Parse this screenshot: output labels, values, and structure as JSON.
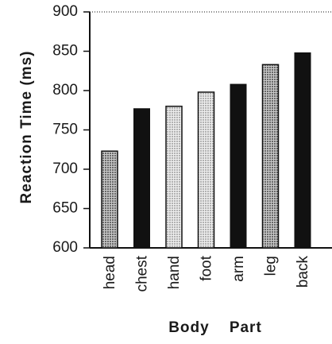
{
  "chart_data": {
    "type": "bar",
    "xlabel": "Body    Part",
    "ylabel": "Reaction   Time  (ms)",
    "categories": [
      "head",
      "chest",
      "hand",
      "foot",
      "arm",
      "leg",
      "back"
    ],
    "values": [
      723,
      777,
      780,
      798,
      808,
      833,
      848
    ],
    "fill_styles": [
      "dots-dense",
      "solid",
      "dots-light",
      "dots-light",
      "solid",
      "dots-dense",
      "solid"
    ],
    "ylim": [
      600,
      900
    ],
    "yticks": [
      600,
      650,
      700,
      750,
      800,
      850,
      900
    ],
    "grid": false,
    "legend": "none"
  },
  "colors": {
    "ink": "#111111",
    "background": "#ffffff"
  }
}
